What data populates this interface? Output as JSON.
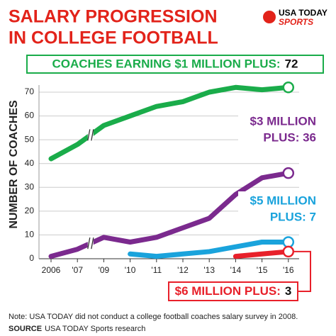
{
  "chart_data": {
    "type": "line",
    "title": [
      "SALARY PROGRESSION",
      "IN COLLEGE FOOTBALL"
    ],
    "logo": [
      "USA TODAY",
      "SPORTS"
    ],
    "y_label": "NUMBER OF COACHES",
    "categories": [
      "2006",
      "'07",
      "'09",
      "'10",
      "'11",
      "'12",
      "'13",
      "'14",
      "'15",
      "'16"
    ],
    "ylim": [
      0,
      75
    ],
    "yticks": [
      0,
      10,
      20,
      30,
      40,
      50,
      60,
      70
    ],
    "grid": true,
    "series": [
      {
        "color": "#1aac4a",
        "label": [
          "COACHES EARNING $1 MILLION PLUS:",
          "72"
        ],
        "label_layout": "inline",
        "values": [
          42,
          48,
          56,
          60,
          64,
          66,
          70,
          72,
          71,
          72
        ]
      },
      {
        "color": "#7b2a8e",
        "label": [
          "$3 MILLION",
          "PLUS: 36"
        ],
        "label_layout": "stacked",
        "values": [
          1,
          4,
          9,
          7,
          9,
          13,
          17,
          27,
          34,
          36
        ]
      },
      {
        "color": "#1aa3dc",
        "label": [
          "$5 MILLION",
          "PLUS: 7"
        ],
        "label_layout": "stacked",
        "values": [
          null,
          null,
          null,
          2,
          1,
          2,
          3,
          5,
          7,
          7
        ]
      },
      {
        "color": "#e8202a",
        "label": [
          "$6 MILLION PLUS:",
          "3"
        ],
        "label_layout": "inline",
        "values": [
          null,
          null,
          null,
          null,
          null,
          null,
          null,
          1,
          2,
          3
        ]
      }
    ],
    "note": "Note: USA TODAY did not conduct a college football coaches salary survey in 2008.",
    "source": [
      "SOURCE",
      "USA TODAY Sports research"
    ]
  }
}
